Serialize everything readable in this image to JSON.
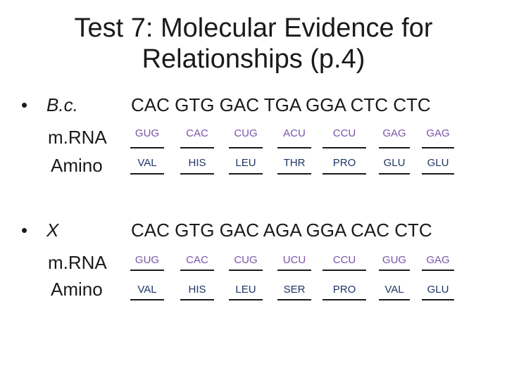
{
  "title": {
    "line1": "Test 7: Molecular Evidence for",
    "line2": "Relationships (p.4)"
  },
  "sections": [
    {
      "bullet": "•",
      "label": "B.c.",
      "dna": "CAC  GTG  GAC  TGA  GGA  CTC  CTC",
      "mrna_label": "m.RNA",
      "amino_label": "Amino",
      "mrna": [
        "GUG",
        "CAC",
        "CUG",
        "ACU",
        "CCU",
        "GAG",
        "GAG"
      ],
      "amino": [
        "VAL",
        "HIS",
        "LEU",
        "THR",
        "PRO",
        "GLU",
        "GLU"
      ]
    },
    {
      "bullet": "•",
      "label": "X",
      "dna": "CAC  GTG  GAC  AGA  GGA  CAC  CTC",
      "mrna_label": "m.RNA",
      "amino_label": "Amino",
      "mrna": [
        "GUG",
        "CAC",
        "CUG",
        "UCU",
        "CCU",
        "GUG",
        "GAG"
      ],
      "amino": [
        "VAL",
        "HIS",
        "LEU",
        "SER",
        "PRO",
        "VAL",
        "GLU"
      ]
    }
  ],
  "colors": {
    "mrna": "#7a54a8",
    "amino": "#1f3566",
    "text": "#1a1a1a"
  }
}
